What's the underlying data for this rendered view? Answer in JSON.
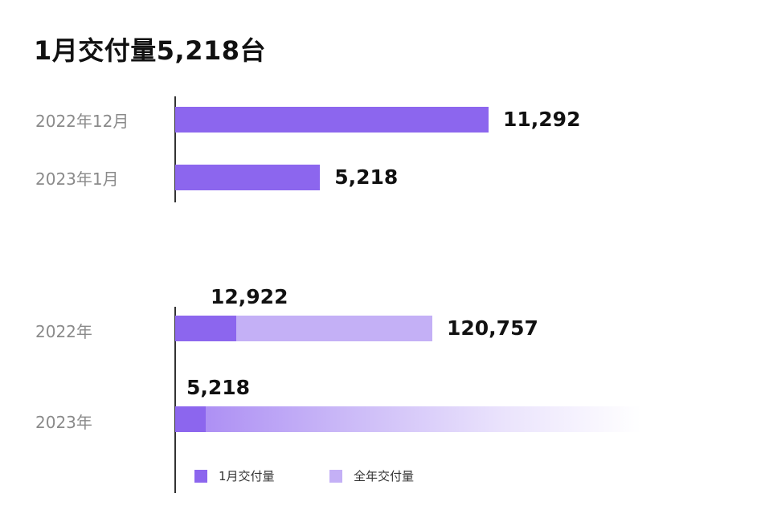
{
  "title": "1月交付量5,218台",
  "colors": {
    "monthly": "#8c66ee",
    "annual": "#c4b0f6"
  },
  "chart_data": [
    {
      "type": "bar",
      "orientation": "horizontal",
      "categories": [
        "2022年12月",
        "2023年1月"
      ],
      "series": [
        {
          "name": "1月交付量",
          "values": [
            11292,
            5218
          ]
        }
      ],
      "data_labels": [
        "11,292",
        "5,218"
      ]
    },
    {
      "type": "bar",
      "orientation": "horizontal",
      "categories": [
        "2022年",
        "2023年"
      ],
      "series": [
        {
          "name": "1月交付量",
          "values": [
            12922,
            5218
          ]
        },
        {
          "name": "全年交付量",
          "values": [
            120757,
            null
          ]
        }
      ],
      "data_labels": {
        "monthly": [
          "12,922",
          "5,218"
        ],
        "annual": [
          "120,757",
          ""
        ]
      },
      "legend": {
        "position": "bottom",
        "items": [
          "1月交付量",
          "全年交付量"
        ]
      }
    }
  ]
}
